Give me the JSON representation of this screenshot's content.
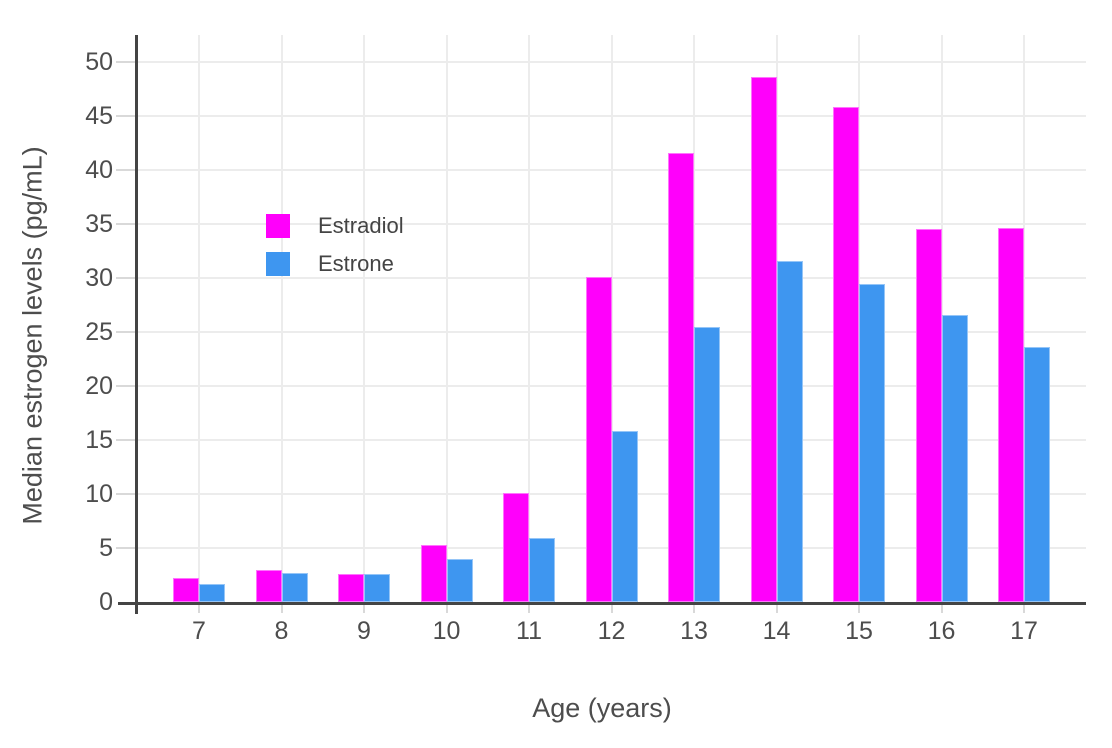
{
  "figure": {
    "y_axis_title": "Median estrogen levels (pg/mL)",
    "x_axis_title": "Age (years)"
  },
  "colors": {
    "estradiol": "#FF00FB",
    "estrone": "#3E96F0",
    "gridline": "#ECECEC",
    "axis_line": "#444444",
    "tick_mark": "#D9D9D9",
    "tick_label_text": "#4D4D4D",
    "legend_text": "#444444",
    "background": "#FFFFFF"
  },
  "chart_data": {
    "type": "bar",
    "title": "",
    "xlabel": "Age (years)",
    "ylabel": "Median estrogen levels (pg/mL)",
    "categories": [
      "7",
      "8",
      "9",
      "10",
      "11",
      "12",
      "13",
      "14",
      "15",
      "16",
      "17"
    ],
    "series": [
      {
        "name": "Estradiol",
        "color": "#FF00FB",
        "values": [
          2.2,
          3.0,
          2.6,
          5.3,
          10.1,
          30.1,
          41.6,
          48.6,
          45.8,
          34.5,
          34.6
        ]
      },
      {
        "name": "Estrone",
        "color": "#3E96F0",
        "values": [
          1.7,
          2.7,
          2.6,
          4.0,
          5.9,
          15.8,
          25.5,
          31.6,
          29.4,
          26.6,
          23.6
        ]
      }
    ],
    "ylim": [
      0,
      50
    ],
    "y_tick_step": 5,
    "y_tick_labels": [
      "0",
      "5",
      "10",
      "15",
      "20",
      "25",
      "30",
      "35",
      "40",
      "45",
      "50"
    ],
    "grid": true,
    "legend_position": "inside-top-left",
    "bar_orientation": "vertical",
    "group_mode": "grouped"
  }
}
